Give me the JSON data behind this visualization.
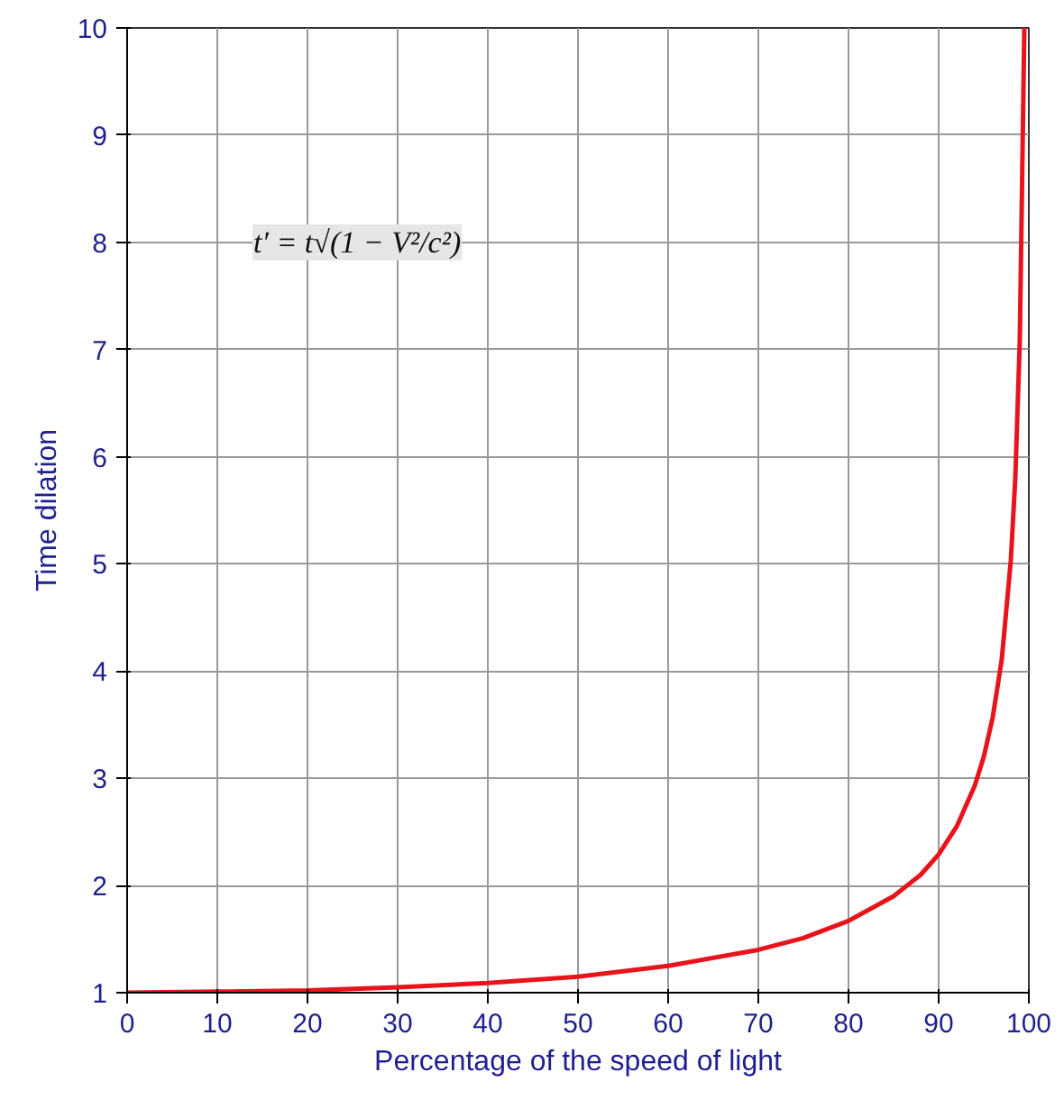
{
  "chart_data": {
    "type": "line",
    "xlabel": "Percentage of the speed of light",
    "ylabel": "Time dilation",
    "x": [
      0,
      10,
      20,
      30,
      40,
      50,
      60,
      70,
      75,
      80,
      85,
      88,
      90,
      92,
      94,
      95,
      96,
      97,
      98,
      98.5,
      99,
      99.5
    ],
    "series": [
      {
        "color": "#e8131b",
        "values": [
          1,
          1.01,
          1.02,
          1.05,
          1.09,
          1.15,
          1.25,
          1.4,
          1.51,
          1.67,
          1.9,
          2.1,
          2.29,
          2.55,
          2.93,
          3.2,
          3.57,
          4.11,
          5.03,
          5.8,
          7.09,
          10
        ]
      }
    ],
    "xlim": [
      0,
      100
    ],
    "ylim": [
      1,
      10
    ],
    "xticks": [
      0,
      10,
      20,
      30,
      40,
      50,
      60,
      70,
      80,
      90,
      100
    ],
    "yticks": [
      1,
      2,
      3,
      4,
      5,
      6,
      7,
      8,
      9,
      10
    ],
    "grid": true,
    "marker": "none",
    "line_style": "solid",
    "annotations": [
      "t′ = t√(1 − V²/c²)"
    ]
  }
}
